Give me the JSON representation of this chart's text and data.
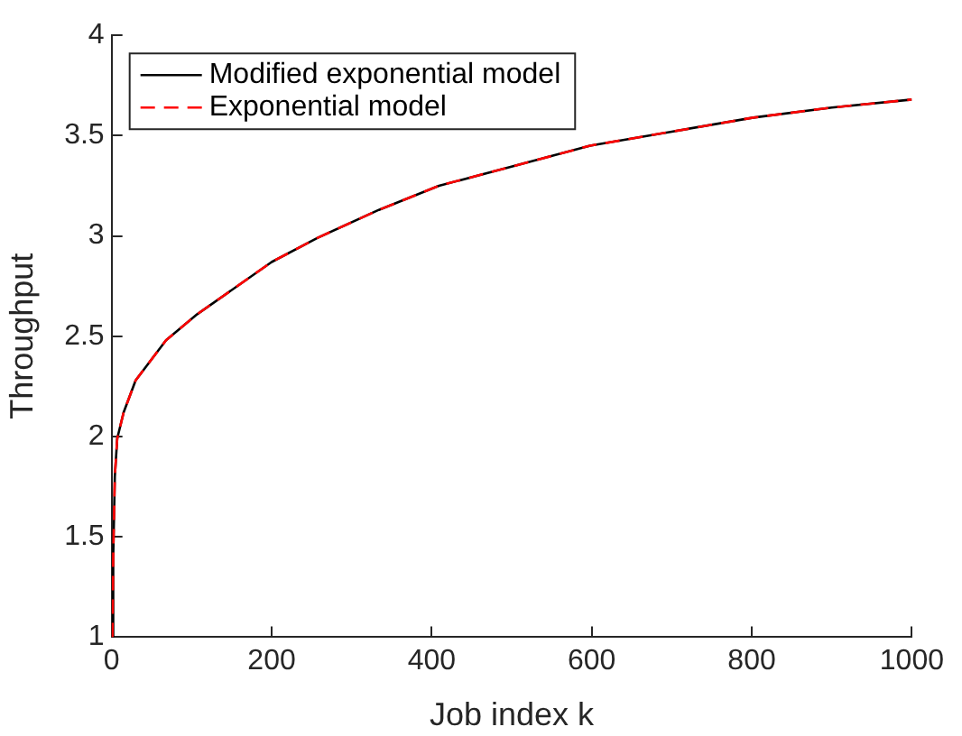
{
  "chart_data": {
    "type": "line",
    "xlabel": "Job index k",
    "ylabel": "Throughput",
    "xlim": [
      0,
      1000
    ],
    "xticks": [
      0,
      200,
      400,
      600,
      800,
      1000
    ],
    "ylim": [
      1,
      4
    ],
    "yticks": [
      1,
      1.5,
      2,
      2.5,
      3,
      3.5,
      4
    ],
    "legend": "top left",
    "grid": false,
    "marker": "none",
    "series": [
      {
        "name": "Modified exponential model",
        "color": "#000000",
        "line_style": "solid",
        "x": [
          1,
          2,
          4,
          7,
          15,
          30,
          68,
          107,
          200,
          257,
          334,
          409,
          523,
          598,
          700,
          802,
          900,
          1000
        ],
        "values": [
          1,
          1.4,
          1.8,
          1.99,
          2.12,
          2.28,
          2.48,
          2.61,
          2.87,
          2.99,
          3.13,
          3.25,
          3.37,
          3.45,
          3.52,
          3.59,
          3.64,
          3.68
        ]
      },
      {
        "name": "Exponential model",
        "color": "#ff0000",
        "line_style": "dashed",
        "x": [
          1,
          2,
          4,
          7,
          15,
          30,
          68,
          107,
          200,
          257,
          334,
          409,
          523,
          598,
          700,
          802,
          900,
          1000
        ],
        "values": [
          1,
          1.4,
          1.8,
          1.99,
          2.12,
          2.28,
          2.48,
          2.61,
          2.87,
          2.99,
          3.13,
          3.25,
          3.37,
          3.45,
          3.52,
          3.59,
          3.64,
          3.68
        ]
      }
    ]
  }
}
